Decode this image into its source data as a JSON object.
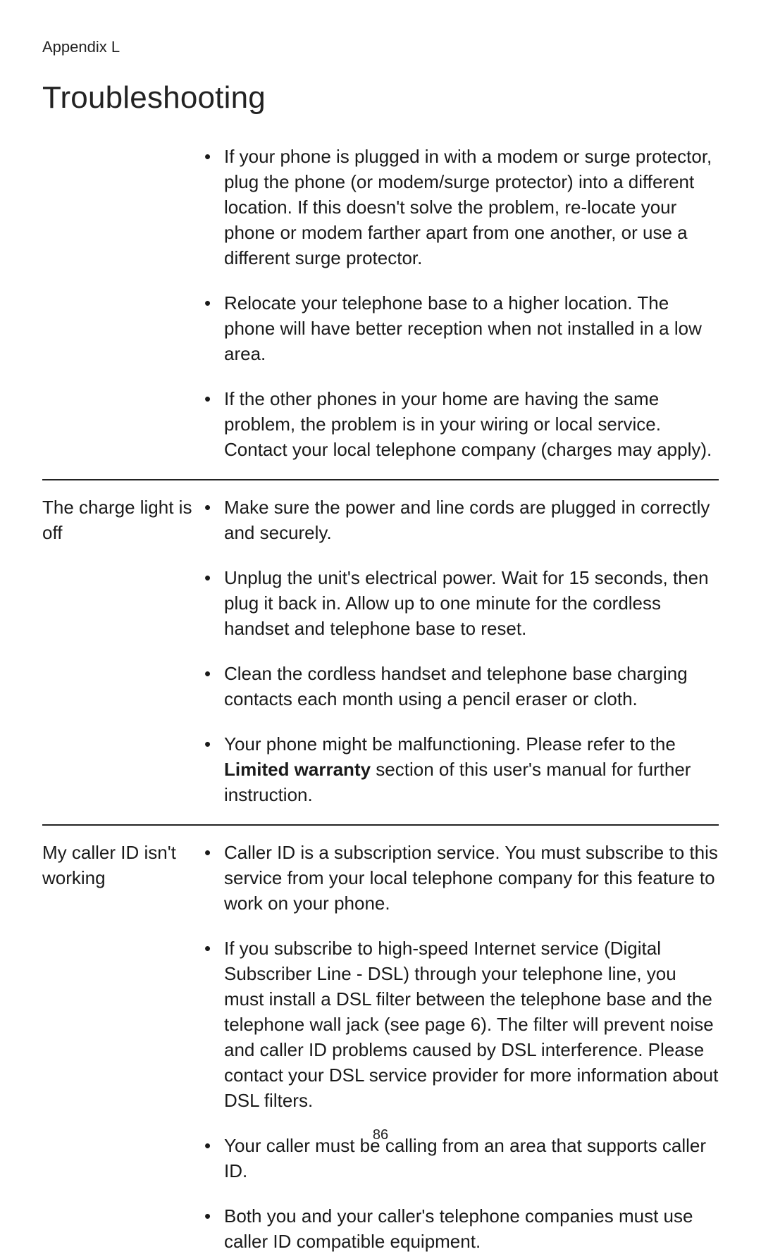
{
  "appendix_label": "Appendix L",
  "page_title": "Troubleshooting",
  "page_number": "86",
  "sections": [
    {
      "label": "",
      "bullets": [
        {
          "text": "If your phone is plugged in with a modem or surge protector, plug the phone (or modem/surge protector) into a different location. If this doesn't solve the problem, re-locate your phone or modem farther apart from one another, or use a different surge protector."
        },
        {
          "text": "Relocate your telephone base to a higher location. The phone will have better reception when not installed in a low area."
        },
        {
          "text": "If the other phones in your home are having the same problem, the problem is in your wiring or local service. Contact your local telephone company (charges may apply)."
        }
      ]
    },
    {
      "label": "The charge light is off",
      "bullets": [
        {
          "text": "Make sure the power and line cords are plugged in correctly and securely."
        },
        {
          "text": "Unplug the unit's electrical power. Wait for 15 seconds, then plug it back in. Allow up to one minute for the cordless handset and telephone base to reset."
        },
        {
          "text": "Clean the cordless handset and telephone base charging contacts each month using a pencil eraser or cloth."
        },
        {
          "pre": "Your phone might be malfunctioning. Please refer to the ",
          "bold": "Limited warranty",
          "post": " section of this user's manual for further instruction."
        }
      ]
    },
    {
      "label": "My caller ID isn't working",
      "bullets": [
        {
          "text": "Caller ID is a subscription service. You must subscribe to this service from your local telephone company for this feature to work on your phone."
        },
        {
          "text": "If you subscribe to high-speed Internet service (Digital Subscriber Line - DSL) through your telephone line, you must install a DSL filter between the telephone base and the telephone wall jack (see page 6). The filter will prevent noise and caller ID problems caused by DSL interference. Please contact your DSL service provider for more information about DSL filters."
        },
        {
          "text": "Your caller must be calling from an area that supports caller ID."
        },
        {
          "text": "Both you and your caller's telephone companies must use caller ID compatible equipment."
        }
      ]
    }
  ]
}
